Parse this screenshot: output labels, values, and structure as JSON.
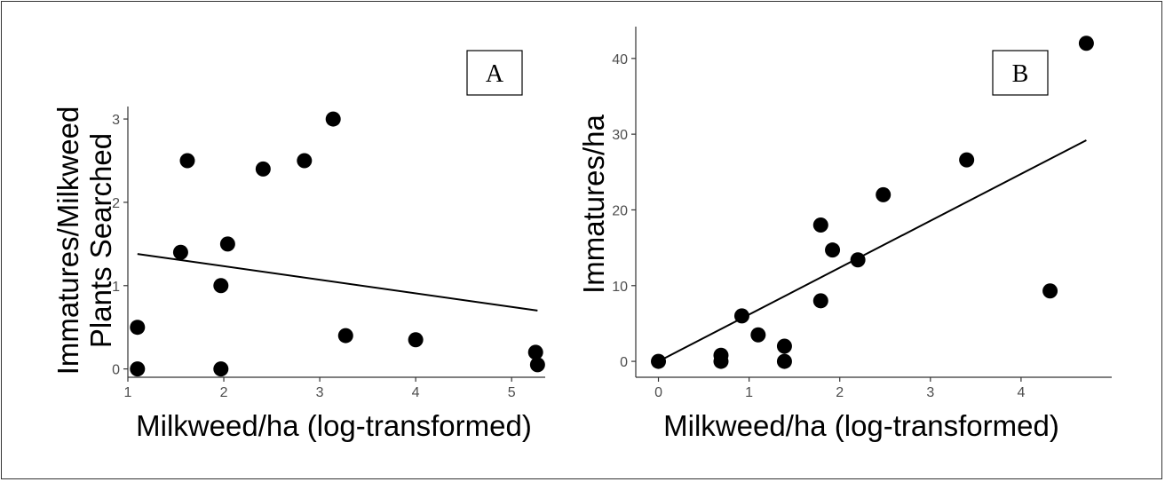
{
  "chart_data": [
    {
      "type": "scatter",
      "panel_label": "A",
      "xlabel": "Milkweed/ha (log-transformed)",
      "ylabel_lines": [
        "Immatures/Milkweed",
        "Plants Searched"
      ],
      "xlim": [
        1,
        5.35
      ],
      "ylim": [
        -0.1,
        3.15
      ],
      "xticks": [
        1,
        2,
        3,
        4,
        5
      ],
      "yticks": [
        0,
        1,
        2,
        3
      ],
      "grid": false,
      "marker_color": "#000000",
      "points": [
        {
          "x": 1.1,
          "y": 0.5
        },
        {
          "x": 1.1,
          "y": 0.0
        },
        {
          "x": 1.55,
          "y": 1.4
        },
        {
          "x": 1.62,
          "y": 2.5
        },
        {
          "x": 1.97,
          "y": 1.0
        },
        {
          "x": 1.97,
          "y": 0.0
        },
        {
          "x": 2.04,
          "y": 1.5
        },
        {
          "x": 2.41,
          "y": 2.4
        },
        {
          "x": 2.84,
          "y": 2.5
        },
        {
          "x": 3.14,
          "y": 3.0
        },
        {
          "x": 3.27,
          "y": 0.4
        },
        {
          "x": 4.0,
          "y": 0.35
        },
        {
          "x": 5.25,
          "y": 0.2
        },
        {
          "x": 5.27,
          "y": 0.05
        }
      ],
      "trend_line": {
        "x": [
          1.1,
          5.27
        ],
        "y": [
          1.38,
          0.7
        ]
      }
    },
    {
      "type": "scatter",
      "panel_label": "B",
      "xlabel": "Milkweed/ha (log-transformed)",
      "ylabel": "Immatures/ha",
      "xlim": [
        -0.25,
        5.0
      ],
      "ylim": [
        -2.1,
        44.2
      ],
      "xticks": [
        0,
        1,
        2,
        3,
        4
      ],
      "yticks": [
        0,
        10,
        20,
        30,
        40
      ],
      "grid": false,
      "marker_color": "#000000",
      "points": [
        {
          "x": 0.0,
          "y": 0.0
        },
        {
          "x": 0.69,
          "y": 0.0
        },
        {
          "x": 0.69,
          "y": 0.8
        },
        {
          "x": 0.92,
          "y": 6.0
        },
        {
          "x": 1.1,
          "y": 3.5
        },
        {
          "x": 1.39,
          "y": 2.0
        },
        {
          "x": 1.39,
          "y": 0.0
        },
        {
          "x": 1.79,
          "y": 18.0
        },
        {
          "x": 1.79,
          "y": 8.0
        },
        {
          "x": 1.92,
          "y": 14.7
        },
        {
          "x": 2.2,
          "y": 13.4
        },
        {
          "x": 2.48,
          "y": 22.0
        },
        {
          "x": 3.4,
          "y": 26.6
        },
        {
          "x": 4.32,
          "y": 9.3
        },
        {
          "x": 4.72,
          "y": 42.0
        }
      ],
      "trend_line": {
        "x": [
          0.0,
          4.72
        ],
        "y": [
          0.0,
          29.2
        ]
      }
    }
  ]
}
